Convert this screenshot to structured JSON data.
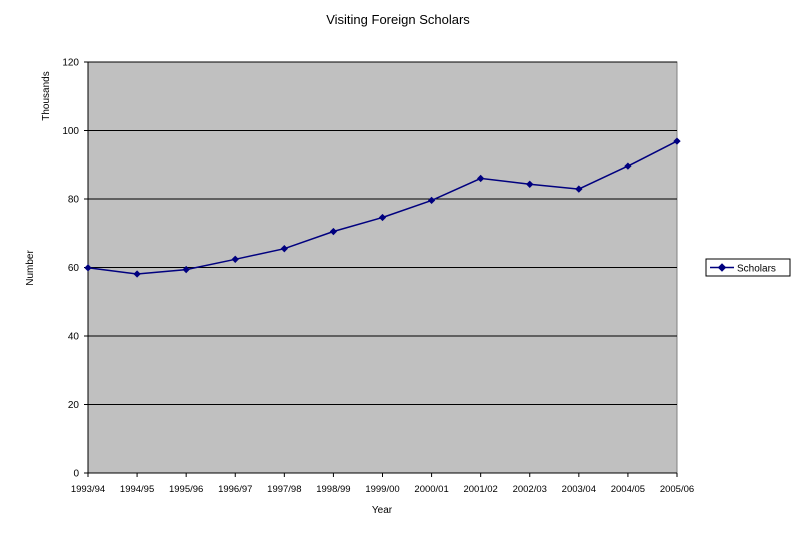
{
  "chart_data": {
    "type": "line",
    "title": "Visiting Foreign Scholars",
    "xlabel": "Year",
    "ylabel": "Number",
    "yunit_label": "Thousands",
    "ylim": [
      0,
      120
    ],
    "yticks": [
      0,
      20,
      40,
      60,
      80,
      100,
      120
    ],
    "categories": [
      "1993/94",
      "1994/95",
      "1995/96",
      "1996/97",
      "1997/98",
      "1998/99",
      "1999/00",
      "2000/01",
      "2001/02",
      "2002/03",
      "2003/04",
      "2004/05",
      "2005/06"
    ],
    "series": [
      {
        "name": "Scholars",
        "color": "#00007f",
        "values": [
          59.9,
          58.1,
          59.4,
          62.4,
          65.5,
          70.5,
          74.6,
          79.6,
          86.0,
          84.3,
          82.9,
          89.6,
          96.9
        ]
      }
    ],
    "grid": true,
    "legend_position": "right",
    "plot_background": "#c0c0c0"
  }
}
